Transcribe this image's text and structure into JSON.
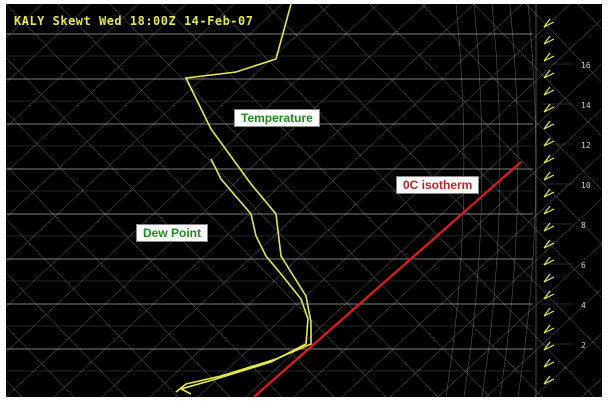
{
  "title": "KALY Skewt  Wed 18:00Z 14-Feb-07",
  "colors": {
    "background": "#000000",
    "grid": "#cfcfcf",
    "temperature": "#e6e84a",
    "dew_point": "#e6e84a",
    "isotherm": "#d41c1c",
    "label_text": "#1f8a1f"
  },
  "chart_data": {
    "type": "line",
    "title": "KALY Skewt  Wed 18:00Z 14-Feb-07",
    "annotations": [
      "Temperature",
      "Dew Point",
      "0C isotherm"
    ],
    "series": [
      {
        "name": "Temperature"
      },
      {
        "name": "Dew Point"
      },
      {
        "name": "0C isotherm"
      }
    ],
    "wind_scale_labels": [
      "16",
      "14",
      "12",
      "10",
      "8",
      "6",
      "4",
      "2"
    ],
    "grid": true
  }
}
